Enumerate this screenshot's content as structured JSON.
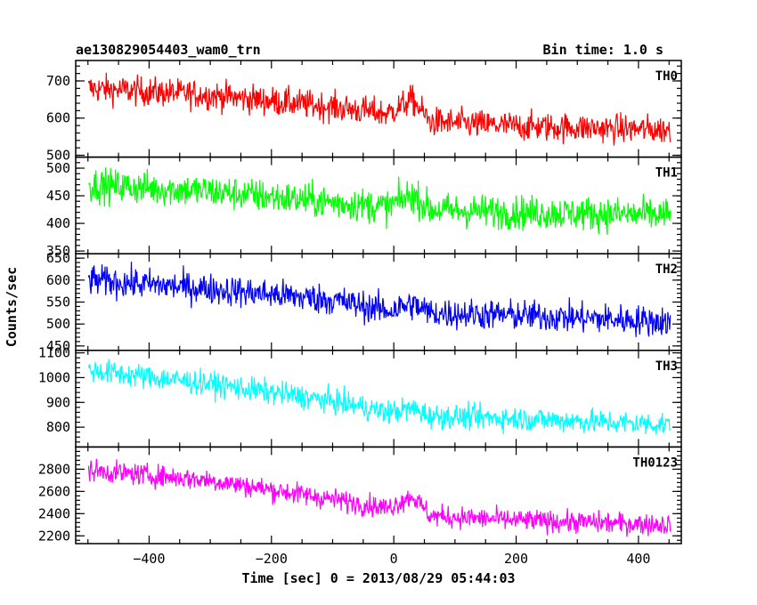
{
  "header": {
    "left_title": "ae130829054403_wam0_trn",
    "right_title": "Bin time: 1.0 s"
  },
  "chart_data": {
    "type": "line",
    "xlabel": "Time [sec] 0 = 2013/08/29 05:44:03",
    "ylabel": "Counts/sec",
    "xlim": [
      -520,
      470
    ],
    "xticks": [
      -400,
      -200,
      0,
      200,
      400
    ],
    "x_start": -499,
    "x_end": 452,
    "bin_time_s": 1.0,
    "panels": [
      {
        "name": "TH0",
        "color": "#ff0000",
        "ylim": [
          495,
          755
        ],
        "yticks": [
          500,
          600,
          700
        ],
        "trend": [
          [
            -499,
            680
          ],
          [
            -300,
            662
          ],
          [
            -100,
            630
          ],
          [
            -10,
            612
          ],
          [
            30,
            650
          ],
          [
            60,
            590
          ],
          [
            200,
            578
          ],
          [
            452,
            568
          ]
        ],
        "noise": 28
      },
      {
        "name": "TH1",
        "color": "#00ff00",
        "ylim": [
          345,
          520
        ],
        "yticks": [
          350,
          400,
          450,
          500
        ],
        "trend": [
          [
            -499,
            470
          ],
          [
            -300,
            458
          ],
          [
            -100,
            438
          ],
          [
            -10,
            430
          ],
          [
            30,
            452
          ],
          [
            60,
            425
          ],
          [
            200,
            420
          ],
          [
            452,
            415
          ]
        ],
        "noise": 22
      },
      {
        "name": "TH2",
        "color": "#0000ff",
        "ylim": [
          440,
          660
        ],
        "yticks": [
          450,
          500,
          550,
          600,
          650
        ],
        "trend": [
          [
            -499,
            600
          ],
          [
            -300,
            580
          ],
          [
            -100,
            555
          ],
          [
            -10,
            530
          ],
          [
            30,
            545
          ],
          [
            60,
            525
          ],
          [
            200,
            520
          ],
          [
            452,
            505
          ]
        ],
        "noise": 25
      },
      {
        "name": "TH3",
        "color": "#00ffff",
        "ylim": [
          720,
          1110
        ],
        "yticks": [
          800,
          900,
          1000,
          1100
        ],
        "trend": [
          [
            -499,
            1030
          ],
          [
            -300,
            975
          ],
          [
            -100,
            905
          ],
          [
            -10,
            860
          ],
          [
            30,
            875
          ],
          [
            60,
            845
          ],
          [
            200,
            835
          ],
          [
            452,
            810
          ]
        ],
        "noise": 35
      },
      {
        "name": "TH0123",
        "color": "#ff00ff",
        "ylim": [
          2130,
          3000
        ],
        "yticks": [
          2200,
          2400,
          2600,
          2800
        ],
        "trend": [
          [
            -499,
            2790
          ],
          [
            -300,
            2700
          ],
          [
            -100,
            2530
          ],
          [
            -10,
            2450
          ],
          [
            30,
            2560
          ],
          [
            60,
            2380
          ],
          [
            200,
            2340
          ],
          [
            452,
            2300
          ]
        ],
        "noise": 70
      }
    ]
  }
}
